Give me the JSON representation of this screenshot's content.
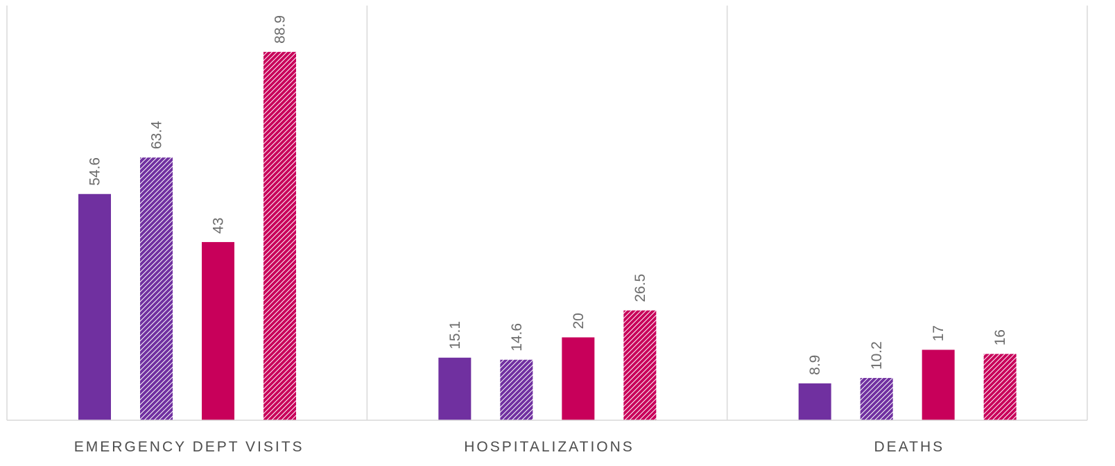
{
  "chart_data": {
    "type": "bar",
    "title": "",
    "xlabel": "",
    "ylabel": "",
    "categories": [
      "EMERGENCY DEPT VISITS",
      "HOSPITALIZATIONS",
      "DEATHS"
    ],
    "ylim": [
      0,
      100
    ],
    "grid": false,
    "legend": "none",
    "series": [
      {
        "values": [
          54.6,
          15.1,
          8.9
        ],
        "color": "#7030a0",
        "fill": "solid"
      },
      {
        "values": [
          63.4,
          14.6,
          10.2
        ],
        "color": "#7030a0",
        "fill": "hatched"
      },
      {
        "values": [
          43,
          20,
          17
        ],
        "color": "#c8005a",
        "fill": "solid"
      },
      {
        "values": [
          88.9,
          26.5,
          16
        ],
        "color": "#c8005a",
        "fill": "hatched"
      }
    ],
    "data_labels": [
      [
        "54.6",
        "15.1",
        "8.9"
      ],
      [
        "63.4",
        "14.6",
        "10.2"
      ],
      [
        "43",
        "20",
        "17"
      ],
      [
        "88.9",
        "26.5",
        "16"
      ]
    ]
  },
  "colors": {
    "purple": "#7030a0",
    "magenta": "#c8005a",
    "axis": "#d9d9d9",
    "label_text": "#6b6b6b",
    "category_text": "#4d4d4d"
  }
}
